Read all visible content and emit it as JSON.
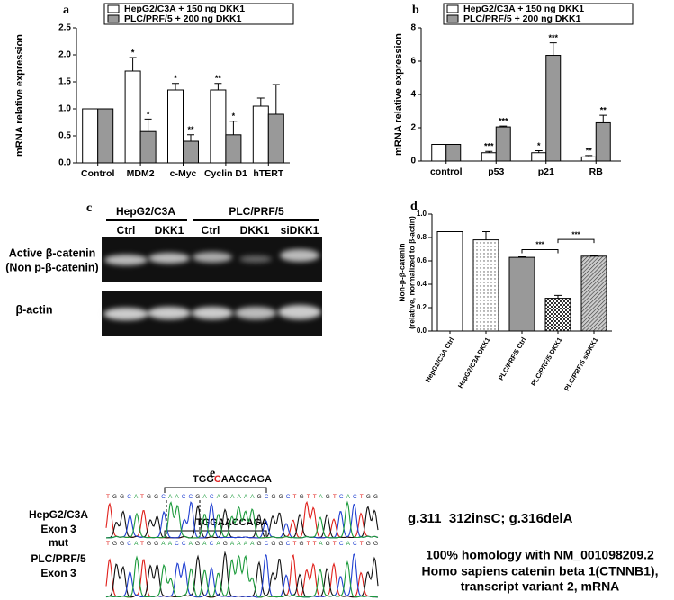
{
  "chart_data": [
    {
      "type": "bar",
      "panel_label": "a",
      "y_label": "mRNA relative expression",
      "categories": [
        "Control",
        "MDM2",
        "c-Myc",
        "Cyclin D1",
        "hTERT"
      ],
      "series": [
        {
          "name": "HepG2/C3A + 150 ng DKK1",
          "color": "#ffffff",
          "values": [
            1.0,
            1.7,
            1.35,
            1.35,
            1.05
          ],
          "errors": [
            0,
            0.25,
            0.12,
            0.12,
            0.15
          ],
          "significance": [
            null,
            "*",
            "*",
            "**",
            null
          ]
        },
        {
          "name": "PLC/PRF/5 + 200 ng DKK1",
          "color": "#999999",
          "values": [
            1.0,
            0.58,
            0.4,
            0.52,
            0.9
          ],
          "errors": [
            0,
            0.23,
            0.12,
            0.25,
            0.55
          ],
          "significance": [
            null,
            "*",
            "**",
            "*",
            null
          ]
        }
      ],
      "ylim": [
        0,
        2.5
      ],
      "yticks": [
        {
          "value": 0,
          "label": "0.0"
        },
        0.5,
        {
          "value": 1,
          "label": "1.0"
        },
        1.5,
        {
          "value": 2,
          "label": "2.0"
        },
        2.5
      ],
      "legend": "top"
    },
    {
      "type": "bar",
      "panel_label": "b",
      "y_label": "mRNA relative expression",
      "categories": [
        "control",
        "p53",
        "p21",
        "RB"
      ],
      "series": [
        {
          "name": "HepG2/C3A + 150 ng DKK1",
          "color": "#ffffff",
          "values": [
            1.0,
            0.5,
            0.5,
            0.25
          ],
          "errors": [
            0,
            0.08,
            0.12,
            0.08
          ],
          "significance": [
            null,
            "***",
            "*",
            "**"
          ]
        },
        {
          "name": "PLC/PRF/5 + 200 ng DKK1",
          "color": "#999999",
          "values": [
            1.0,
            2.05,
            6.35,
            2.3
          ],
          "errors": [
            0,
            0.05,
            0.75,
            0.45
          ],
          "significance": [
            null,
            "***",
            "***",
            "**"
          ]
        }
      ],
      "ylim": [
        0,
        8
      ],
      "yticks": [
        0,
        2,
        4,
        6,
        8
      ],
      "legend": "top"
    },
    {
      "type": "bar",
      "panel_label": "d",
      "y_label": [
        "Non-p-β-catenin",
        "(relative, normalized to β-actin)"
      ],
      "categories": [
        "HepG2/C3A Ctrl",
        "HepG2/C3A DKK1",
        "PLC/PRF/5 Ctrl",
        "PLC/PRF/5 DKK1",
        "PLC/PRF/5 siDKK1"
      ],
      "values": [
        0.85,
        0.78,
        0.63,
        0.28,
        0.64
      ],
      "errors": [
        0,
        0.07,
        0.005,
        0.025,
        0.005
      ],
      "fills": [
        "white",
        "dots",
        "gray",
        "checker",
        "hatch"
      ],
      "comparisons": [
        {
          "from": 2,
          "to": 3,
          "label": "***"
        },
        {
          "from": 3,
          "to": 4,
          "label": "***"
        }
      ],
      "ylim": [
        0,
        1
      ],
      "yticks": [
        {
          "value": 0,
          "label": "0.0"
        },
        0.2,
        0.4,
        0.6,
        0.8,
        {
          "value": 1,
          "label": "1.0"
        }
      ]
    }
  ],
  "panel_c": {
    "panel_label": "c",
    "groups": [
      "HepG2/C3A",
      "PLC/PRF/5"
    ],
    "lanes": [
      "Ctrl",
      "DKK1",
      "Ctrl",
      "DKK1",
      "siDKK1"
    ],
    "rows": [
      [
        "Active β-catenin",
        "(Non p-β-catenin)"
      ],
      [
        "β-actin"
      ]
    ]
  },
  "panel_e": {
    "panel_label": "e",
    "rows": [
      {
        "motif_parts": [
          "TGG",
          "C",
          "AACCAGA"
        ],
        "sequence": "TGGCATGGCAACCGACAGAAAAGCGGCTGTTAGTCACTGG",
        "sample": [
          "HepG2/C3A",
          "Exon 3",
          "mut"
        ],
        "result": [
          "g.311_312insC; g.316delA"
        ]
      },
      {
        "motif_parts": [
          "TGGAACCAGA"
        ],
        "sequence": "TGGCATGGAACCAGACAGAAAAGCGGCTGTTAGTCACTGG",
        "sample": [
          "PLC/PRF/5",
          "Exon 3"
        ],
        "result": [
          "100% homology with NM_001098209.2",
          "Homo sapiens catenin beta 1(CTNNB1),",
          "transcript variant 2, mRNA"
        ]
      }
    ]
  }
}
